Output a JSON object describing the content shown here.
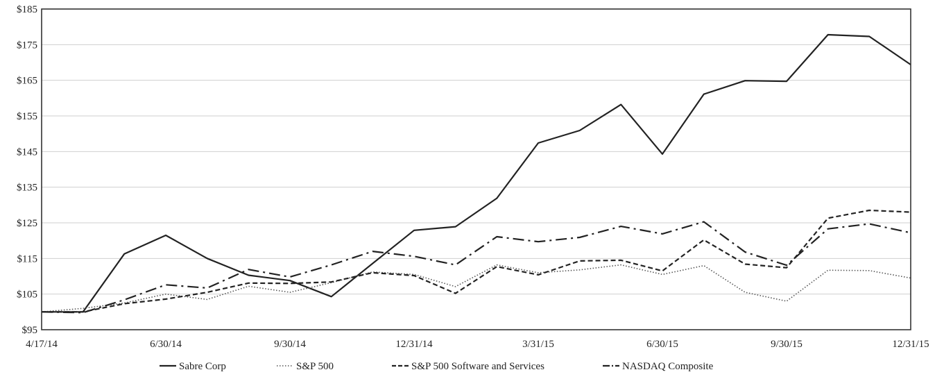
{
  "chart_data": {
    "type": "line",
    "title": "",
    "xlabel": "",
    "ylabel": "",
    "ylim": [
      95,
      185
    ],
    "y_ticks": [
      "$95",
      "$105",
      "$115",
      "$125",
      "$135",
      "$145",
      "$155",
      "$165",
      "$175",
      "$185"
    ],
    "x_tick_labels": [
      "4/17/14",
      "6/30/14",
      "9/30/14",
      "12/31/14",
      "3/31/15",
      "6/30/15",
      "9/30/15",
      "12/31/15"
    ],
    "x_points": [
      "4/17/14",
      "4/30/14",
      "5/31/14",
      "6/30/14",
      "7/31/14",
      "8/31/14",
      "9/30/14",
      "10/31/14",
      "11/30/14",
      "12/31/14",
      "1/31/15",
      "2/28/15",
      "3/31/15",
      "4/30/15",
      "5/31/15",
      "6/30/15",
      "7/31/15",
      "8/31/15",
      "9/30/15",
      "10/31/15",
      "11/30/15",
      "12/31/15"
    ],
    "grid": "horizontal",
    "legend_position": "bottom",
    "series": [
      {
        "name": "Sabre Corp",
        "style": "solid",
        "values": [
          100,
          100,
          116.3,
          121.5,
          115,
          110.3,
          108.8,
          104.3,
          113.6,
          122.9,
          123.9,
          131.9,
          147.4,
          150.9,
          158.2,
          144.3,
          161.1,
          164.9,
          164.7,
          177.8,
          177.3,
          169.4
        ]
      },
      {
        "name": "S&P 500",
        "style": "dotted",
        "values": [
          100,
          101,
          102.5,
          105,
          103.5,
          107.2,
          105.5,
          108.2,
          111.2,
          110.5,
          107.1,
          113.2,
          111,
          111.8,
          113.2,
          110.5,
          113,
          105.5,
          103,
          111.7,
          111.6,
          109.5
        ]
      },
      {
        "name": "S&P 500 Software and Services",
        "style": "dashed",
        "values": [
          100,
          100,
          102.3,
          103.6,
          105.5,
          108.1,
          108,
          108.4,
          111,
          110.2,
          105.2,
          112.7,
          110.4,
          114.3,
          114.5,
          111.5,
          120.2,
          113.4,
          112.4,
          126.3,
          128.5,
          128
        ]
      },
      {
        "name": "NASDAQ Composite",
        "style": "dashdot",
        "values": [
          100,
          99.8,
          103.4,
          107.6,
          106.7,
          111.9,
          109.8,
          113.2,
          117,
          115.6,
          113.2,
          121.1,
          119.7,
          120.9,
          124,
          121.9,
          125.3,
          116.8,
          113.1,
          123.3,
          124.7,
          122.2
        ]
      }
    ]
  }
}
